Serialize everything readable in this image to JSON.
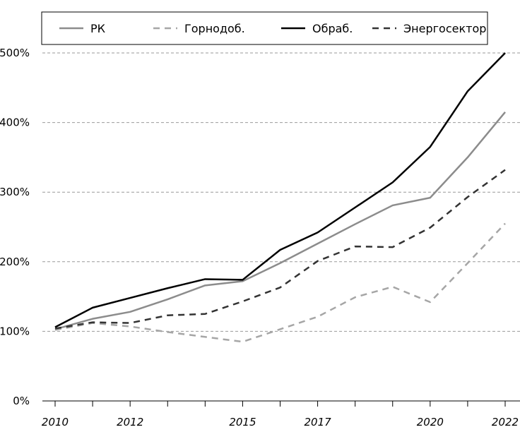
{
  "chart_data": {
    "type": "line",
    "title": "",
    "xlabel": "",
    "ylabel": "",
    "x": [
      2010,
      2011,
      2012,
      2013,
      2014,
      2015,
      2016,
      2017,
      2018,
      2019,
      2020,
      2021,
      2022
    ],
    "x_tick_labels": [
      "2010",
      "2012",
      "2015",
      "2017",
      "2020",
      "2022"
    ],
    "y_tick_labels": [
      "0%",
      "100%",
      "200%",
      "300%",
      "400%",
      "500%"
    ],
    "ylim": [
      0,
      500
    ],
    "grid": "horizontal dashed",
    "legend_position": "top",
    "series": [
      {
        "name": "РК",
        "color": "#8c8c8c",
        "dash": "solid",
        "values": [
          103,
          118,
          128,
          146,
          166,
          172,
          198,
          226,
          254,
          281,
          292,
          350,
          415
        ]
      },
      {
        "name": "Горнодоб.",
        "color": "#a6a6a6",
        "dash": "dashed",
        "values": [
          102,
          112,
          107,
          99,
          92,
          85,
          103,
          121,
          149,
          164,
          142,
          198,
          255
        ]
      },
      {
        "name": "Обраб.",
        "color": "#000000",
        "dash": "solid",
        "values": [
          106,
          134,
          148,
          162,
          175,
          174,
          217,
          242,
          278,
          314,
          365,
          445,
          500
        ]
      },
      {
        "name": "Энергосектор",
        "color": "#333333",
        "dash": "dashed",
        "values": [
          104,
          113,
          112,
          123,
          125,
          143,
          163,
          201,
          222,
          221,
          249,
          293,
          332
        ]
      }
    ]
  }
}
